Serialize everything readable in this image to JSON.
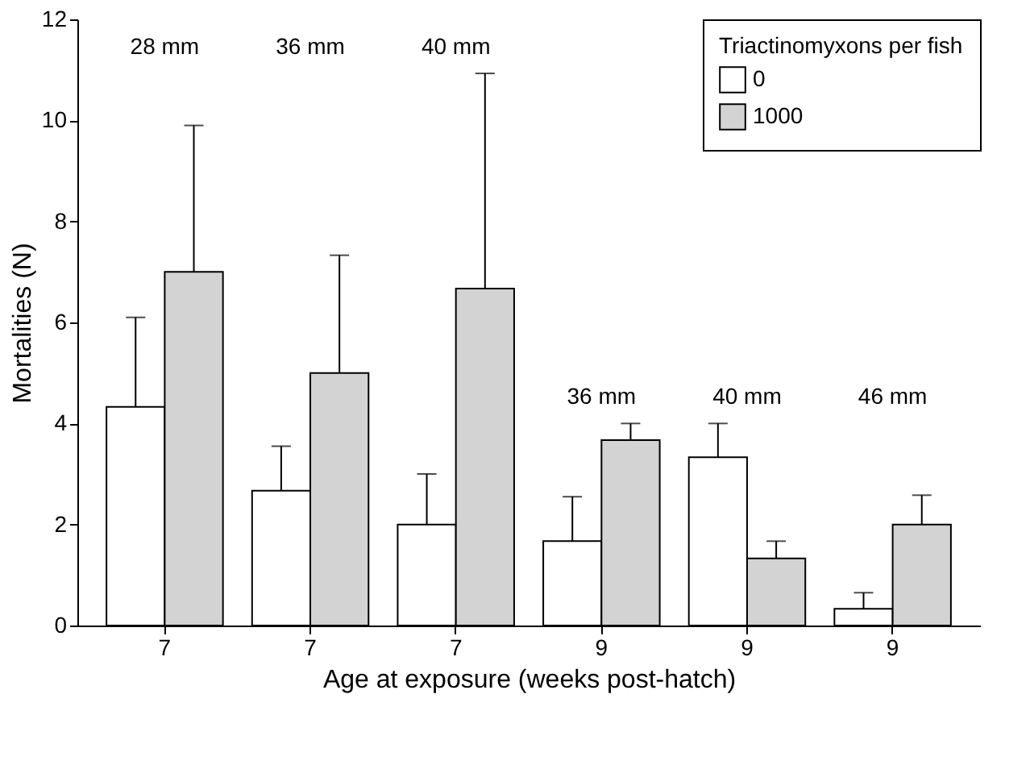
{
  "chart_data": {
    "type": "bar",
    "xlabel": "Age at exposure (weeks post-hatch)",
    "ylabel": "Mortalities (N)",
    "legend_title": "Triactinomyxons per fish",
    "legend": "top right",
    "grid": false,
    "categories": [
      "7",
      "7",
      "7",
      "9",
      "9",
      "9"
    ],
    "series": [
      {
        "name": "0",
        "color": "#ffffff",
        "values": [
          4.33,
          2.67,
          2.0,
          1.67,
          3.33,
          0.33
        ],
        "errors": [
          [
            4.33,
            6.1
          ],
          [
            2.67,
            3.55
          ],
          [
            2.0,
            3.0
          ],
          [
            1.67,
            2.55
          ],
          [
            3.33,
            4.0
          ],
          [
            0.33,
            0.65
          ]
        ]
      },
      {
        "name": "1000",
        "color": "#d3d3d3",
        "values": [
          7.0,
          5.0,
          6.67,
          3.67,
          1.33,
          2.0
        ],
        "errors": [
          [
            7.0,
            9.9
          ],
          [
            5.0,
            7.33
          ],
          [
            6.67,
            10.93
          ],
          [
            3.67,
            4.0
          ],
          [
            1.33,
            1.67
          ],
          [
            2.0,
            2.58
          ]
        ]
      }
    ],
    "ylim": [
      0,
      12
    ],
    "yticks": [
      0,
      2,
      4,
      6,
      8,
      10,
      12
    ],
    "annotations": [
      "28 mm",
      "36 mm",
      "40 mm",
      "36 mm",
      "40 mm",
      "46 mm"
    ]
  }
}
